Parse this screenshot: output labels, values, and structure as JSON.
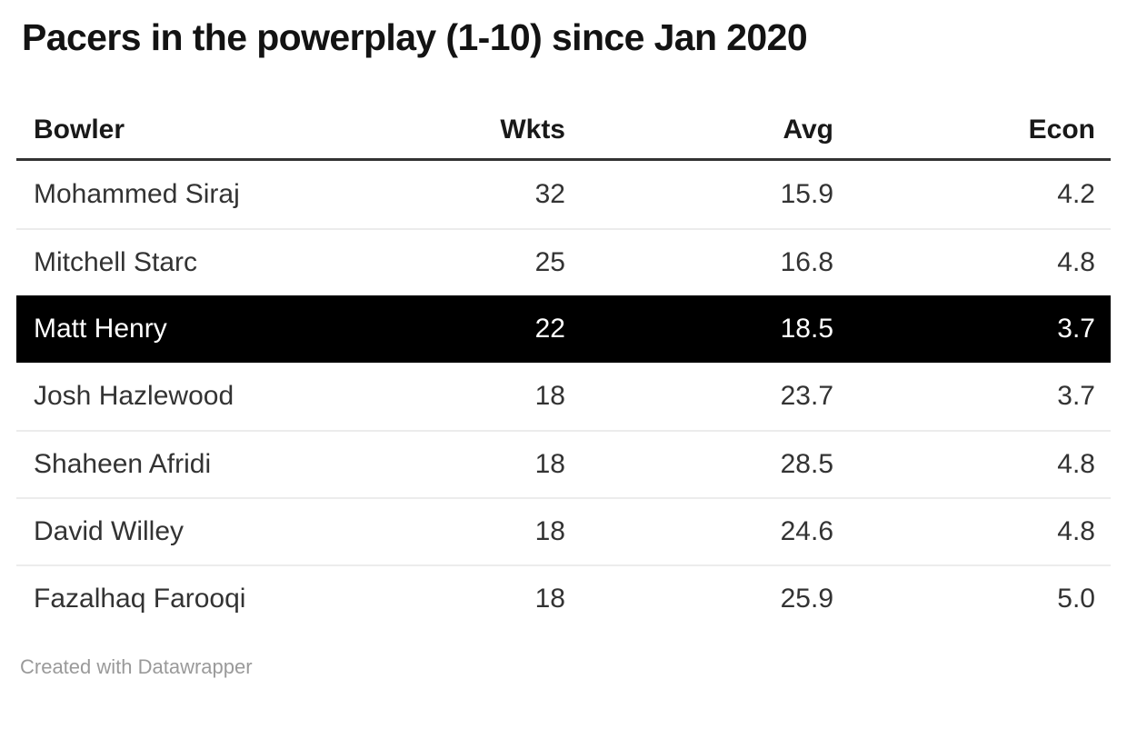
{
  "title": "Pacers in the powerplay (1-10) since Jan 2020",
  "table": {
    "columns": [
      "Bowler",
      "Wkts",
      "Avg",
      "Econ"
    ],
    "rows": [
      {
        "bowler": "Mohammed Siraj",
        "wkts": "32",
        "avg": "15.9",
        "econ": "4.2",
        "highlight": false
      },
      {
        "bowler": "Mitchell Starc",
        "wkts": "25",
        "avg": "16.8",
        "econ": "4.8",
        "highlight": false
      },
      {
        "bowler": "Matt Henry",
        "wkts": "22",
        "avg": "18.5",
        "econ": "3.7",
        "highlight": true
      },
      {
        "bowler": "Josh Hazlewood",
        "wkts": "18",
        "avg": "23.7",
        "econ": "3.7",
        "highlight": false
      },
      {
        "bowler": "Shaheen Afridi",
        "wkts": "18",
        "avg": "28.5",
        "econ": "4.8",
        "highlight": false
      },
      {
        "bowler": "David Willey",
        "wkts": "18",
        "avg": "24.6",
        "econ": "4.8",
        "highlight": false
      },
      {
        "bowler": "Fazalhaq Farooqi",
        "wkts": "18",
        "avg": "25.9",
        "econ": "5.0",
        "highlight": false
      }
    ]
  },
  "footer": {
    "credit": "Created with Datawrapper"
  },
  "colors": {
    "highlight_bg": "#000000",
    "highlight_text": "#ffffff",
    "body_text": "#333333",
    "header_rule": "#333333",
    "row_separator": "#ececec",
    "footer_text": "#9a9a9a"
  },
  "chart_data": {
    "type": "table",
    "title": "Pacers in the powerplay (1-10) since Jan 2020",
    "columns": [
      "Bowler",
      "Wkts",
      "Avg",
      "Econ"
    ],
    "rows": [
      [
        "Mohammed Siraj",
        32,
        15.9,
        4.2
      ],
      [
        "Mitchell Starc",
        25,
        16.8,
        4.8
      ],
      [
        "Matt Henry",
        22,
        18.5,
        3.7
      ],
      [
        "Josh Hazlewood",
        18,
        23.7,
        3.7
      ],
      [
        "Shaheen Afridi",
        18,
        28.5,
        4.8
      ],
      [
        "David Willey",
        18,
        24.6,
        4.8
      ],
      [
        "Fazalhaq Farooqi",
        18,
        25.9,
        5.0
      ]
    ],
    "highlighted_row": "Matt Henry",
    "notes": "Numeric columns right-aligned; header bold with thick rule; credit line below table"
  }
}
